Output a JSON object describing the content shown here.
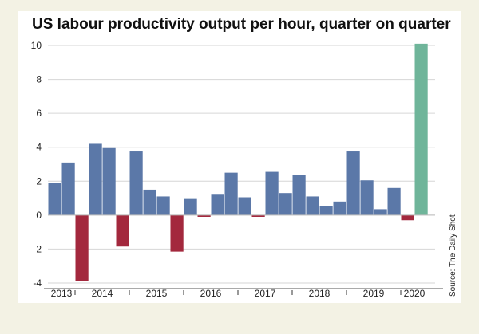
{
  "chart_data": {
    "type": "bar",
    "title": "US labour productivity output per hour, quarter on quarter",
    "source": "Source: The Daily Shot",
    "xlabel": "",
    "ylabel": "",
    "ylim": [
      -4,
      10
    ],
    "yticks": [
      -4,
      -2,
      0,
      2,
      4,
      6,
      8,
      10
    ],
    "year_labels": [
      "2013",
      "2014",
      "2015",
      "2016",
      "2017",
      "2018",
      "2019",
      "2020"
    ],
    "grid": true,
    "colors": {
      "positive": "#5b78a8",
      "negative": "#a3283d",
      "highlight": "#6fb59a"
    },
    "values": [
      1.9,
      3.1,
      -3.9,
      4.2,
      3.95,
      -1.85,
      3.75,
      1.5,
      1.1,
      -2.15,
      0.95,
      -0.1,
      1.25,
      2.5,
      1.05,
      -0.1,
      2.55,
      1.3,
      2.35,
      1.1,
      0.55,
      0.8,
      3.75,
      2.05,
      0.35,
      1.6,
      -0.3,
      10.1
    ],
    "highlight_index": 27
  }
}
